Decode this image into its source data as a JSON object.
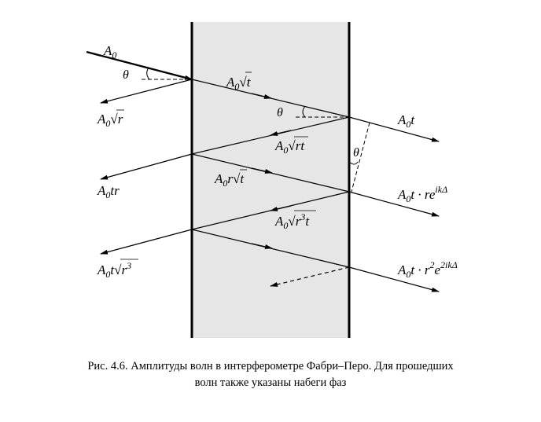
{
  "figure": {
    "caption_line1": "Рис. 4.6. Амплитуды волн в интерферометре Фабри–Перо. Для прошедших",
    "caption_line2": "волн также указаны набеги фаз"
  },
  "colors": {
    "plate_fill": "#e6e6e6",
    "stroke": "#000000"
  },
  "angle_symbol": "θ",
  "labels": {
    "incident": "A0",
    "first_transmitted_inside": "A0√t",
    "reflected_1": "A0√r",
    "internal_reflected_1": "A0√rt",
    "internal_2": "A0r√t",
    "reflected_2": "A0tr",
    "internal_reflected_2": "A0√(r³t)",
    "reflected_3": "A0t√(r³)",
    "transmitted_1": "A0t",
    "transmitted_2": "A0t·re^(ikΔ)",
    "transmitted_3": "A0t·r²e^(2ikΔ)"
  }
}
